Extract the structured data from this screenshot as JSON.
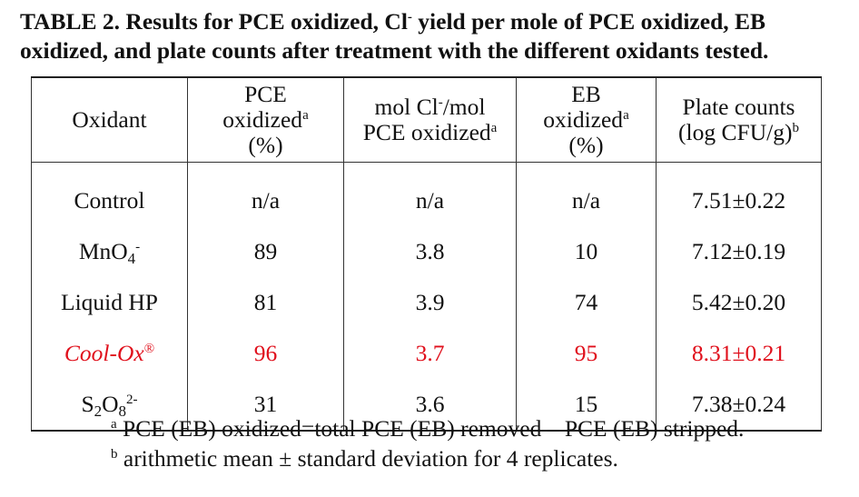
{
  "caption": {
    "line1": "TABLE 2. Results for PCE oxidized, Cl",
    "sup1": "-",
    "line1_rest": " yield per mole of PCE oxidized, EB",
    "line2": "oxidized, and plate counts after treatment with the different oxidants tested."
  },
  "header": {
    "oxidant": "Oxidant",
    "pce": [
      "PCE",
      "oxidized",
      "(%)"
    ],
    "pce_sup": "a",
    "mol": [
      "mol Cl",
      "/mol",
      "PCE oxidized"
    ],
    "mol_sup1": "-",
    "mol_sup2": "a",
    "eb": [
      "EB",
      "oxidized",
      "(%)"
    ],
    "eb_sup": "a",
    "plate": [
      "Plate counts",
      "(log CFU/g)"
    ],
    "plate_sup": "b"
  },
  "rows": [
    {
      "oxidant": "Control",
      "pce": "n/a",
      "mol": "n/a",
      "eb": "n/a",
      "plate": "7.51±0.22"
    },
    {
      "oxidant": "MnO",
      "oxidant_sub": "4",
      "oxidant_sup": "-",
      "pce": "89",
      "mol": "3.8",
      "eb": "10",
      "plate": "7.12±0.19"
    },
    {
      "oxidant": "Liquid HP",
      "pce": "81",
      "mol": "3.9",
      "eb": "74",
      "plate": "5.42±0.20"
    },
    {
      "oxidant": "Cool-Ox",
      "oxidant_sup": "®",
      "pce": "96",
      "mol": "3.7",
      "eb": "95",
      "plate": "8.31±0.21",
      "highlight_color": "#e0101c"
    },
    {
      "oxidant": "S",
      "oxidant_sub": "2",
      "oxidant_mid": "O",
      "oxidant_sub2": "8",
      "oxidant_sup": "2-",
      "pce": "31",
      "mol": "3.6",
      "eb": "15",
      "plate": "7.38±0.24"
    }
  ],
  "notes": {
    "a_mark": "a",
    "a_text": " PCE (EB) oxidized=total PCE (EB) removed – PCE (EB) stripped.",
    "b_mark": "b",
    "b_text": " arithmetic mean ± standard deviation for 4 replicates."
  }
}
